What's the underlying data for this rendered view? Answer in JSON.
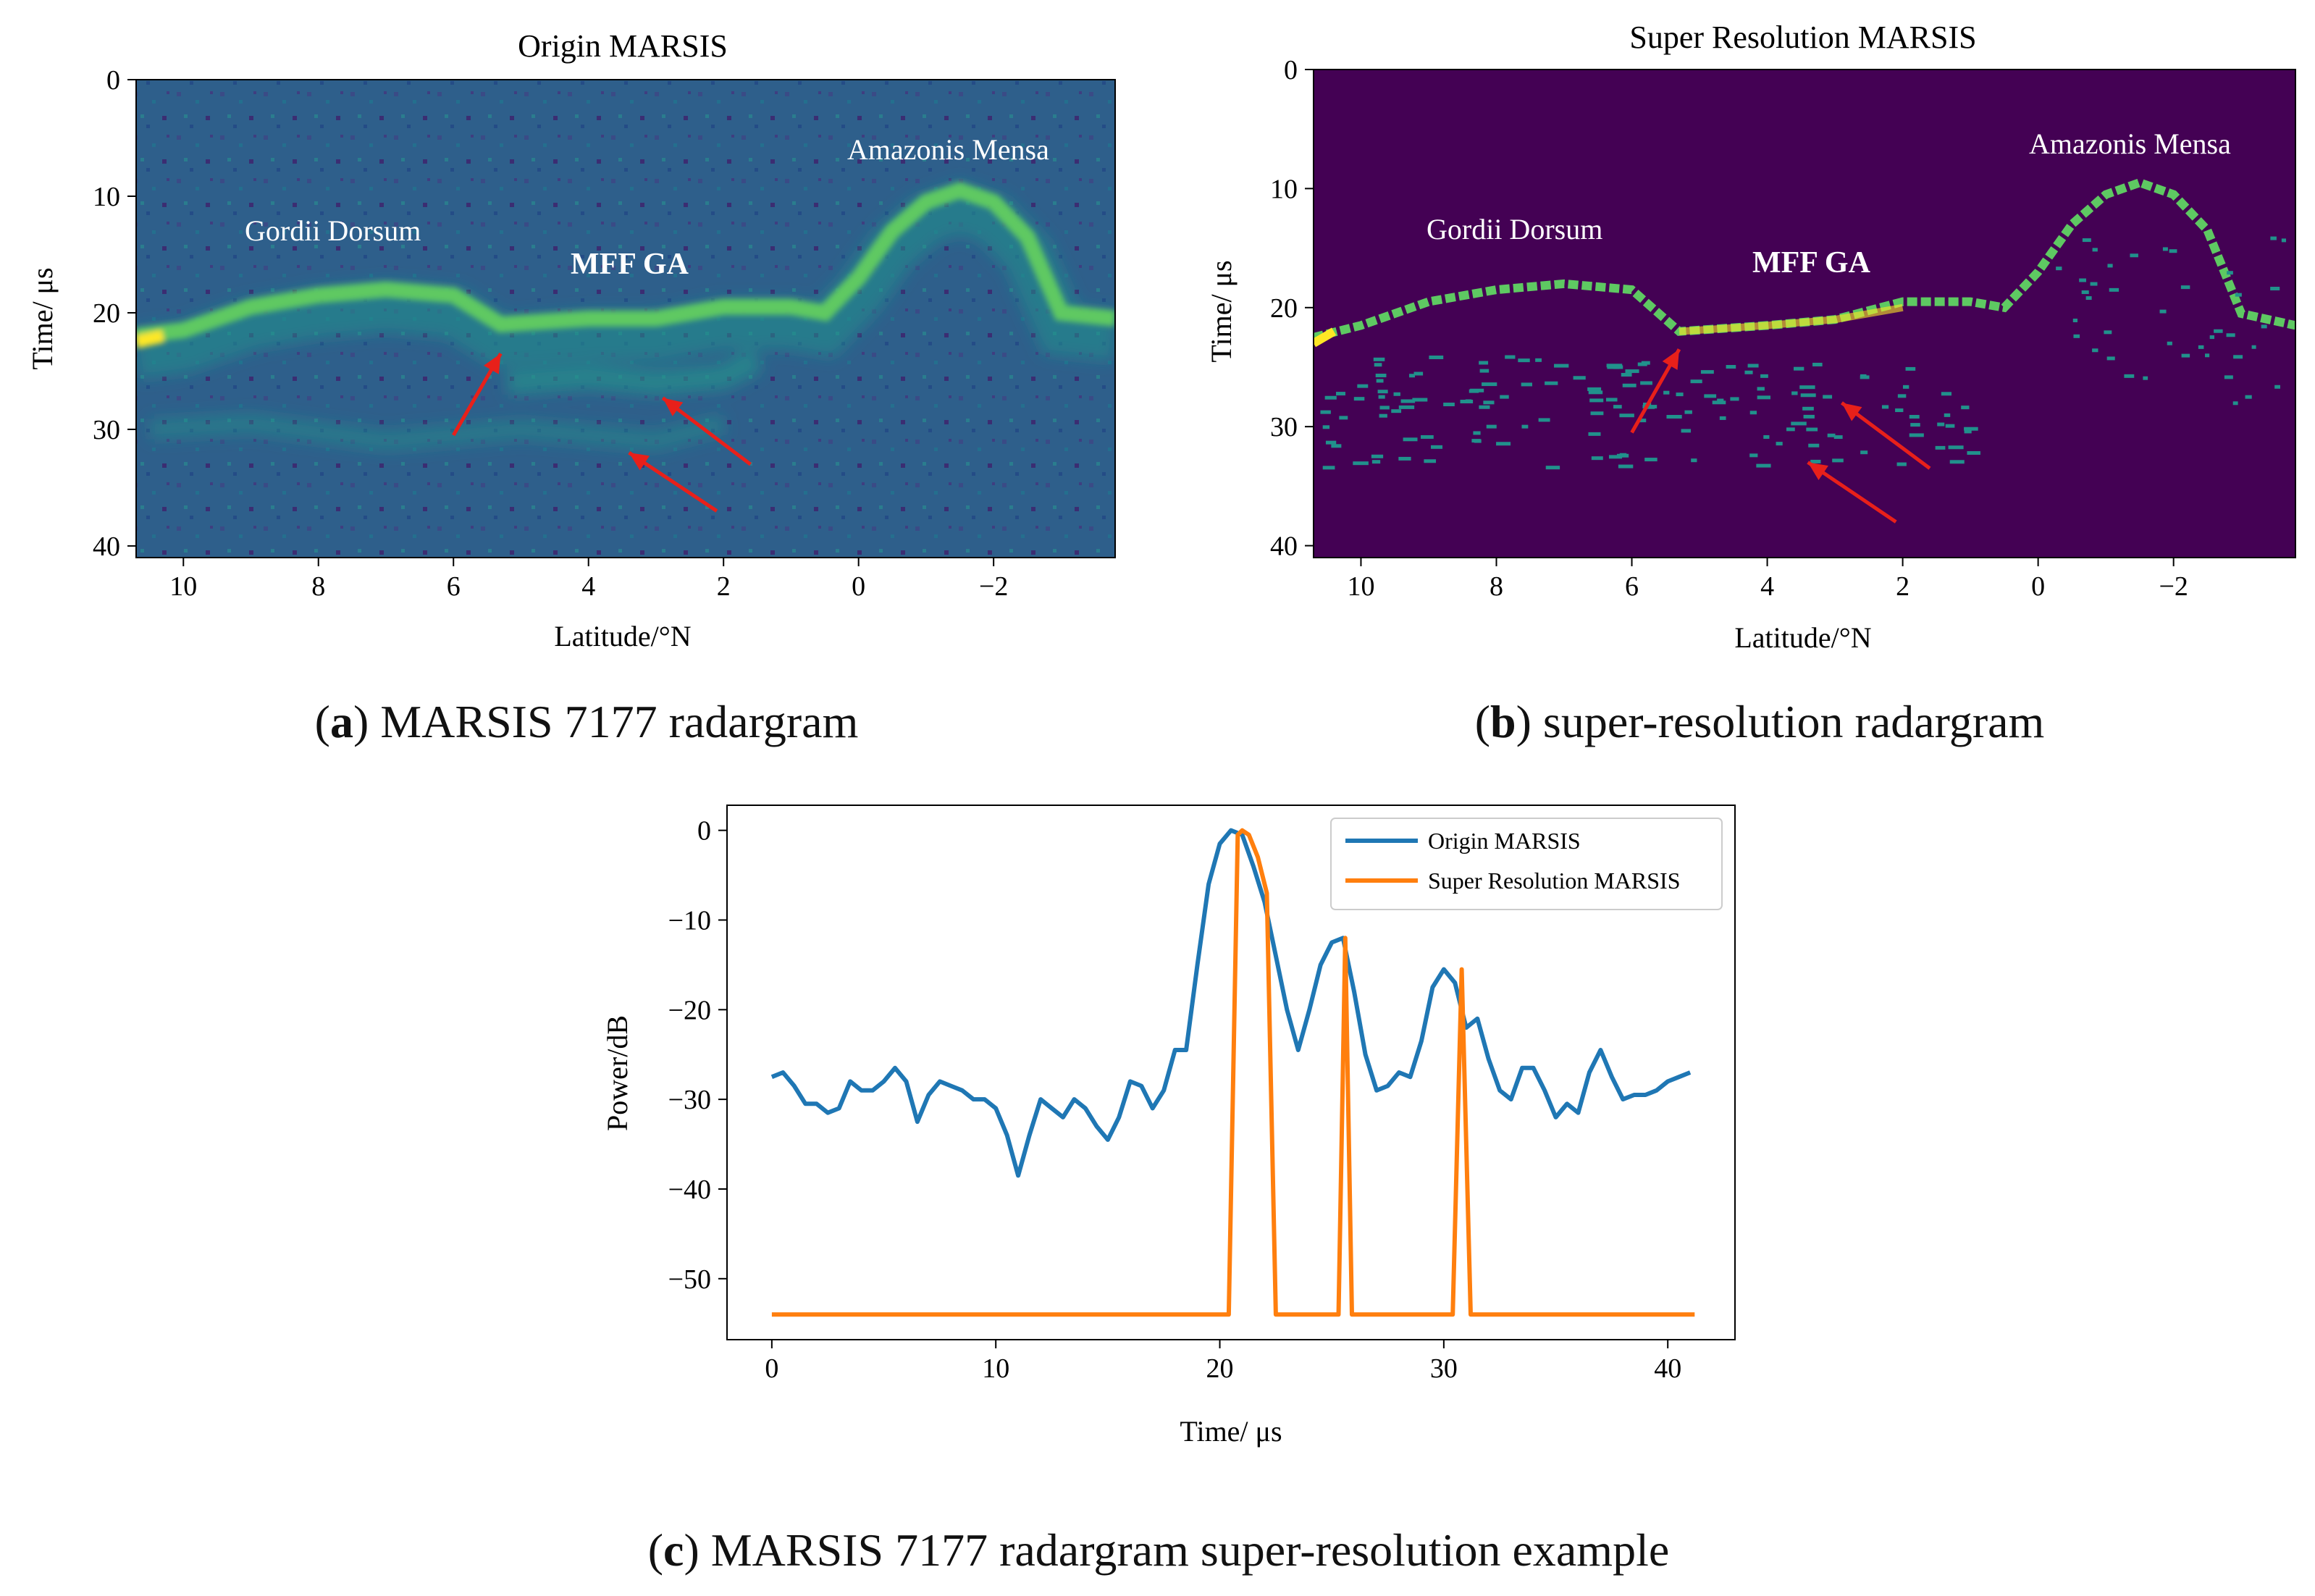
{
  "figure": {
    "captions": [
      {
        "letter": "a",
        "text": ") MARSIS 7177 radargram"
      },
      {
        "letter": "b",
        "text": ") super-resolution radargram"
      },
      {
        "letter": "c",
        "text": ") MARSIS 7177 radargram super-resolution example"
      }
    ]
  },
  "colors": {
    "viridis_bg": "#2b5f8a",
    "viridis_dark": "#440154",
    "viridis_mid": "#21918c",
    "viridis_bright": "#5ec962",
    "viridis_yellow": "#fde725",
    "arrow": "#e8201a",
    "series_origin": "#1f77b4",
    "series_sr": "#ff7f0e"
  },
  "chart_data": [
    {
      "type": "heatmap",
      "title": "Origin MARSIS",
      "xlabel": "Latitude/°N",
      "ylabel": "Time/ μs",
      "xlim": [
        10.7,
        -3.8
      ],
      "ylim": [
        41,
        0
      ],
      "xticks": [
        10,
        8,
        6,
        4,
        2,
        0,
        -2
      ],
      "xtick_labels": [
        "10",
        "8",
        "6",
        "4",
        "2",
        "0",
        "−2"
      ],
      "yticks": [
        0,
        10,
        20,
        30,
        40
      ],
      "annotations": [
        "Gordii Dorsum",
        "MFF GA",
        "Amazonis Mensa"
      ],
      "surface_echo": {
        "lat": [
          10.7,
          10,
          9,
          8,
          7,
          6,
          5.3,
          4,
          3,
          2,
          1,
          0.5,
          0,
          -0.5,
          -1,
          -1.5,
          -2,
          -2.5,
          -3,
          -3.8
        ],
        "time": [
          22,
          21.5,
          19.5,
          18.5,
          18,
          18.5,
          21,
          20.5,
          20.5,
          19.5,
          19.5,
          20,
          17,
          13,
          10.5,
          9.5,
          10.5,
          13.5,
          20,
          20.5
        ]
      },
      "subsurface_echo": {
        "lat": [
          5.2,
          4,
          3,
          2,
          1.5
        ],
        "time": [
          26,
          25.5,
          26,
          25.5,
          24
        ]
      },
      "deep_echo": {
        "lat": [
          10.5,
          9,
          7,
          5,
          4,
          3,
          2
        ],
        "time": [
          30,
          29.5,
          31,
          30,
          30.5,
          31,
          29.5
        ]
      },
      "arrows": [
        {
          "from": [
            6.0,
            30.5
          ],
          "to": [
            5.3,
            23.5
          ]
        },
        {
          "from": [
            1.6,
            33
          ],
          "to": [
            2.9,
            27.3
          ]
        },
        {
          "from": [
            2.1,
            37
          ],
          "to": [
            3.4,
            32
          ]
        }
      ]
    },
    {
      "type": "heatmap",
      "title": "Super Resolution MARSIS",
      "xlabel": "Latitude/°N",
      "ylabel": "Time/ μs",
      "xlim": [
        10.7,
        -3.8
      ],
      "ylim": [
        41,
        0
      ],
      "xticks": [
        10,
        8,
        6,
        4,
        2,
        0,
        -2
      ],
      "xtick_labels": [
        "10",
        "8",
        "6",
        "4",
        "2",
        "0",
        "−2"
      ],
      "yticks": [
        0,
        10,
        20,
        30,
        40
      ],
      "annotations": [
        "Gordii Dorsum",
        "MFF GA",
        "Amazonis Mensa"
      ],
      "surface_echo": {
        "lat": [
          10.7,
          10,
          9,
          8,
          7,
          6,
          5.3,
          4,
          3,
          2,
          1,
          0.5,
          0,
          -0.5,
          -1,
          -1.5,
          -2,
          -2.5,
          -3,
          -3.8
        ],
        "time": [
          22.5,
          21.5,
          19.5,
          18.5,
          18,
          18.5,
          22,
          21.5,
          21,
          19.5,
          19.5,
          20,
          17,
          13,
          10.5,
          9.5,
          10.5,
          13.5,
          20.5,
          21.5
        ]
      },
      "arrows": [
        {
          "from": [
            6.0,
            30.5
          ],
          "to": [
            5.3,
            23.5
          ]
        },
        {
          "from": [
            1.6,
            33.5
          ],
          "to": [
            2.9,
            28
          ]
        },
        {
          "from": [
            2.1,
            38
          ],
          "to": [
            3.4,
            33
          ]
        }
      ]
    },
    {
      "type": "line",
      "xlabel": "Time/ μs",
      "ylabel": "Power/dB",
      "xlim": [
        -2,
        43
      ],
      "ylim": [
        -56.8,
        2.8
      ],
      "xticks": [
        0,
        10,
        20,
        30,
        40
      ],
      "yticks": [
        0,
        -10,
        -20,
        -30,
        -40,
        -50
      ],
      "ytick_labels": [
        "0",
        "−10",
        "−20",
        "−30",
        "−40",
        "−50"
      ],
      "legend_position": "top-right",
      "series": [
        {
          "name": "Origin MARSIS",
          "x": [
            0,
            0.5,
            1,
            1.5,
            2,
            2.5,
            3,
            3.5,
            4,
            4.5,
            5,
            5.5,
            6,
            6.5,
            7,
            7.5,
            8,
            8.5,
            9,
            9.5,
            10,
            10.5,
            11,
            11.5,
            12,
            12.5,
            13,
            13.5,
            14,
            14.5,
            15,
            15.5,
            16,
            16.5,
            17,
            17.5,
            18,
            18.5,
            19,
            19.5,
            20,
            20.5,
            21,
            21.5,
            22,
            22.5,
            23,
            23.5,
            24,
            24.5,
            25,
            25.5,
            26,
            26.5,
            27,
            27.5,
            28,
            28.5,
            29,
            29.5,
            30,
            30.5,
            31,
            31.5,
            32,
            32.5,
            33,
            33.5,
            34,
            34.5,
            35,
            35.5,
            36,
            36.5,
            37,
            37.5,
            38,
            38.5,
            39,
            39.5,
            40,
            40.5,
            41
          ],
          "values": [
            -27.5,
            -27,
            -28.5,
            -30.5,
            -30.5,
            -31.5,
            -31,
            -28,
            -29,
            -29,
            -28,
            -26.5,
            -28,
            -32.5,
            -29.5,
            -28,
            -28.5,
            -29,
            -30,
            -30,
            -31,
            -34,
            -38.5,
            -34,
            -30,
            -31,
            -32,
            -30,
            -31,
            -33,
            -34.5,
            -32,
            -28,
            -28.5,
            -31,
            -29,
            -24.5,
            -24.5,
            -15,
            -6,
            -1.5,
            0,
            -0.5,
            -4,
            -8,
            -14,
            -20,
            -24.5,
            -20,
            -15,
            -12.5,
            -12,
            -18,
            -25,
            -29,
            -28.5,
            -27,
            -27.5,
            -23.5,
            -17.5,
            -15.5,
            -17,
            -22,
            -21,
            -25.5,
            -29,
            -30,
            -26.5,
            -26.5,
            -29,
            -32,
            -30.5,
            -31.5,
            -27,
            -24.5,
            -27.5,
            -30,
            -29.5,
            -29.5,
            -29,
            -28,
            -27.5,
            -27
          ]
        },
        {
          "name": "Super Resolution MARSIS",
          "x": [
            0,
            20.4,
            20.8,
            21,
            21.3,
            21.7,
            22.1,
            22.5,
            22.5,
            25.3,
            25.6,
            25.9,
            25.9,
            30.4,
            30.8,
            31.2,
            31.2,
            41.2
          ],
          "values": [
            -54,
            -54,
            -0.5,
            0,
            -0.5,
            -3,
            -7,
            -54,
            -54,
            -54,
            -12,
            -54,
            -54,
            -54,
            -15.5,
            -54,
            -54,
            -54
          ]
        }
      ]
    }
  ]
}
